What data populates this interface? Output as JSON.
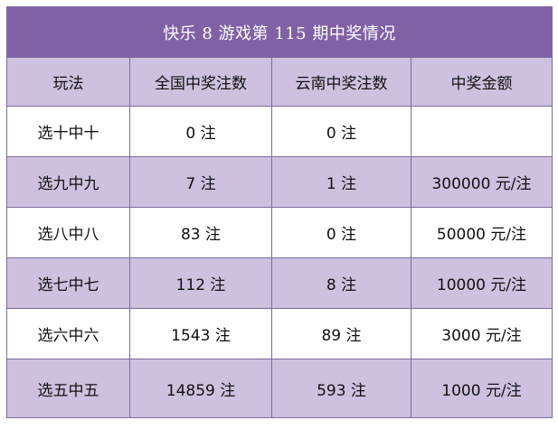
{
  "title": "快乐 8 游戏第 115 期中奖情况",
  "columns": [
    "玩法",
    "全国中奖注数",
    "云南中奖注数",
    "中奖金额"
  ],
  "rows": [
    {
      "play": "选十中十",
      "national": "0 注",
      "yunnan": "0 注",
      "amount": ""
    },
    {
      "play": "选九中九",
      "national": "7 注",
      "yunnan": "1 注",
      "amount": "300000 元/注"
    },
    {
      "play": "选八中八",
      "national": "83 注",
      "yunnan": "0 注",
      "amount": "50000 元/注"
    },
    {
      "play": "选七中七",
      "national": "112 注",
      "yunnan": "8 注",
      "amount": "10000 元/注"
    },
    {
      "play": "选六中六",
      "national": "1543 注",
      "yunnan": "89 注",
      "amount": "3000 元/注"
    },
    {
      "play": "选五中五",
      "national": "14859 注",
      "yunnan": "593 注",
      "amount": "1000 元/注"
    }
  ],
  "colors": {
    "title_bg": "#8161a6",
    "header_bg": "#cdc1df",
    "band_bg": "#cdc1df",
    "border": "#7b6b9c"
  }
}
